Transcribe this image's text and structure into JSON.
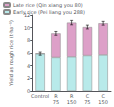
{
  "chart_data": {
    "type": "bar",
    "stacked": true,
    "categories": [
      "Control",
      "R\n75",
      "R\n150",
      "C\n75",
      "C\n150"
    ],
    "series": [
      {
        "name": "Early rice (Pei liang you 288)",
        "color": "#b8eaea",
        "values": [
          5.9,
          5.3,
          5.4,
          5.6,
          5.7
        ]
      },
      {
        "name": "Late rice (Qin xiang you 80)",
        "color": "#dda0c8",
        "values": [
          0.0,
          3.8,
          5.4,
          4.5,
          5.0
        ]
      }
    ],
    "error_bars": [
      0.25,
      0.3,
      0.35,
      0.3,
      0.3
    ],
    "ylabel": "Yield as rough rice (t·ha⁻¹)",
    "ylim": [
      0,
      12
    ],
    "yticks": [
      0,
      2,
      4,
      6,
      8,
      10,
      12
    ],
    "grid": false,
    "legend": "upper left"
  }
}
